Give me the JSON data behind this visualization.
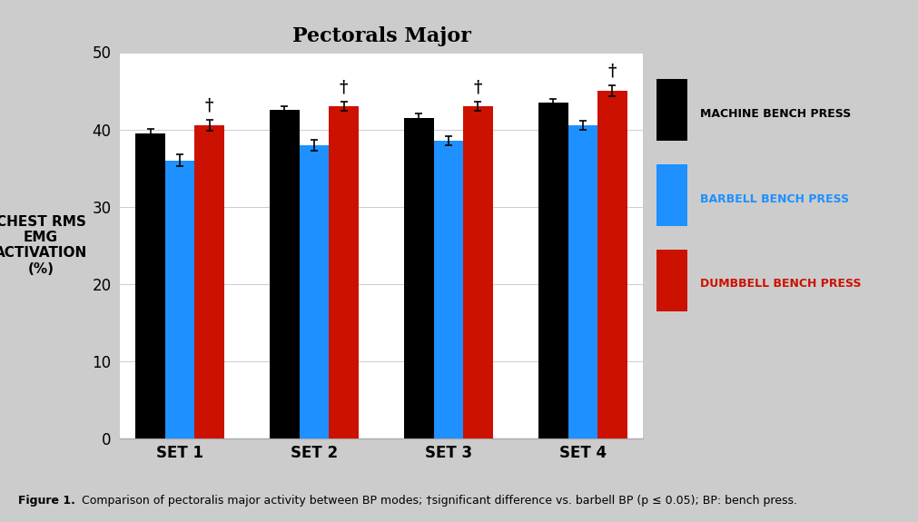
{
  "title": "Pectorals Major",
  "categories": [
    "SET 1",
    "SET 2",
    "SET 3",
    "SET 4"
  ],
  "series": {
    "machine": {
      "label": "MACHINE BENCH PRESS",
      "color": "#000000",
      "values": [
        39.5,
        42.5,
        41.5,
        43.5
      ],
      "errors": [
        0.6,
        0.5,
        0.6,
        0.5
      ]
    },
    "barbell": {
      "label": "BARBELL BENCH PRESS",
      "color": "#1E90FF",
      "values": [
        36.0,
        38.0,
        38.5,
        40.5
      ],
      "errors": [
        0.8,
        0.7,
        0.6,
        0.6
      ]
    },
    "dumbbell": {
      "label": "DUMBBELL BENCH PRESS",
      "color": "#CC1100",
      "values": [
        40.5,
        43.0,
        43.0,
        45.0
      ],
      "errors": [
        0.7,
        0.6,
        0.6,
        0.7
      ]
    }
  },
  "dagger_sets": [
    0,
    1,
    2,
    3
  ],
  "ylabel": "CHEST RMS\nEMG\nACTIVATION\n(%)",
  "ylim": [
    0,
    50
  ],
  "yticks": [
    0,
    10,
    20,
    30,
    40,
    50
  ],
  "background_color": "#ffffff",
  "outer_background": "#cccccc",
  "figcaption_bold": "Figure 1.",
  "figcaption_rest": " Comparison of pectoralis major activity between BP modes; †significant difference vs. barbell BP (p ≤ 0.05); BP: bench press.",
  "bar_width": 0.22,
  "legend_items": [
    {
      "color": "#000000",
      "label": "MACHINE BENCH PRESS",
      "text_color": "#000000"
    },
    {
      "color": "#1E90FF",
      "label": "BARBELL BENCH PRESS",
      "text_color": "#1E90FF"
    },
    {
      "color": "#CC1100",
      "label": "DUMBBELL BENCH PRESS",
      "text_color": "#CC1100"
    }
  ]
}
